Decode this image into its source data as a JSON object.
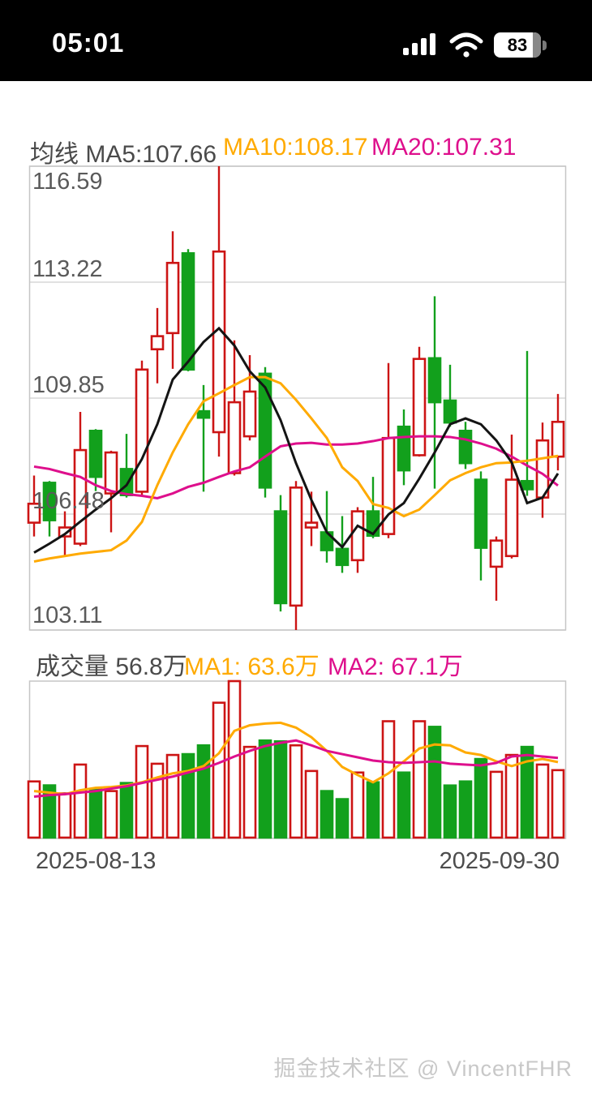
{
  "status_bar": {
    "time": "05:01",
    "battery": "83"
  },
  "price_header": {
    "group": "均线 MA5:107.66",
    "ma10": "MA10:108.17",
    "ma20": "MA20:107.31"
  },
  "volume_header": {
    "vol": "成交量 56.8万",
    "ma1": "MA1: 63.6万",
    "ma2": "MA2: 67.1万"
  },
  "axis": {
    "price_ticks": [
      "116.59",
      "113.22",
      "109.85",
      "106.48",
      "103.11"
    ],
    "date_start": "2025-08-13",
    "date_end": "2025-09-30"
  },
  "watermark": "掘金技术社区 @ VincentFHR",
  "colors": {
    "up": "#cc1414",
    "down": "#12a01c",
    "ma5": "#141414",
    "ma10": "#ffaa00",
    "ma20": "#de0f8c",
    "grid": "#d7d7d7",
    "border": "#c6c6c6"
  },
  "chart_data": {
    "type": "candlestick+volume",
    "date_range": [
      "2025-08-13",
      "2025-09-30"
    ],
    "price_axis": {
      "min": 103.11,
      "max": 116.59,
      "ticks": [
        116.59,
        113.22,
        109.85,
        106.48,
        103.11
      ]
    },
    "volume_axis": {
      "max": 131.8,
      "unit": "万"
    },
    "legend": {
      "price": [
        "MA5",
        "MA10",
        "MA20"
      ],
      "volume": [
        "MA1",
        "MA2"
      ]
    },
    "current": {
      "ma5": 107.66,
      "ma10": 108.17,
      "ma20": 107.31,
      "volume": 56.8,
      "vol_ma1": 63.6,
      "vol_ma2": 67.1
    },
    "candles_ohlc": [
      [
        106.23,
        107.6,
        105.83,
        106.78
      ],
      [
        107.39,
        107.44,
        105.83,
        106.3
      ],
      [
        105.83,
        106.56,
        105.26,
        106.09
      ],
      [
        105.62,
        109.45,
        105.55,
        108.34
      ],
      [
        108.9,
        108.95,
        107.15,
        107.56
      ],
      [
        107.08,
        108.32,
        105.95,
        108.27
      ],
      [
        107.79,
        108.81,
        106.96,
        107.03
      ],
      [
        107.13,
        110.94,
        107.03,
        110.68
      ],
      [
        111.27,
        112.47,
        110.28,
        111.65
      ],
      [
        111.74,
        114.7,
        110.7,
        113.78
      ],
      [
        114.06,
        114.18,
        110.63,
        110.68
      ],
      [
        109.47,
        110.23,
        107.13,
        109.28
      ],
      [
        108.86,
        116.59,
        108.15,
        114.11
      ],
      [
        107.67,
        111.53,
        107.6,
        109.73
      ],
      [
        108.74,
        111.1,
        108.62,
        110.04
      ],
      [
        110.56,
        110.75,
        106.96,
        107.25
      ],
      [
        106.56,
        107.03,
        103.65,
        103.89
      ],
      [
        103.82,
        107.44,
        103.11,
        107.25
      ],
      [
        106.09,
        107.13,
        105.55,
        106.23
      ],
      [
        105.95,
        107.15,
        105.07,
        105.43
      ],
      [
        105.47,
        106.42,
        104.77,
        105.0
      ],
      [
        105.14,
        106.68,
        104.77,
        106.56
      ],
      [
        106.56,
        107.56,
        105.78,
        105.85
      ],
      [
        105.9,
        110.87,
        105.78,
        108.69
      ],
      [
        109.02,
        109.52,
        107.32,
        107.75
      ],
      [
        108.19,
        111.34,
        108.15,
        110.99
      ],
      [
        111.01,
        112.81,
        107.22,
        109.73
      ],
      [
        109.78,
        110.82,
        109.02,
        109.14
      ],
      [
        108.9,
        109.16,
        107.79,
        107.96
      ],
      [
        107.48,
        107.72,
        104.55,
        105.5
      ],
      [
        104.95,
        105.83,
        103.96,
        105.71
      ],
      [
        105.26,
        108.79,
        105.19,
        107.48
      ],
      [
        107.44,
        111.22,
        107.01,
        107.2
      ],
      [
        106.96,
        109.14,
        106.37,
        108.62
      ],
      [
        108.15,
        109.97,
        107.75,
        109.16
      ]
    ],
    "ma5": [
      105.36,
      105.62,
      105.9,
      106.26,
      106.61,
      106.94,
      107.32,
      108.08,
      109.09,
      110.39,
      110.91,
      111.48,
      111.88,
      111.38,
      110.63,
      110.16,
      109.21,
      107.96,
      106.89,
      105.95,
      105.52,
      106.14,
      105.9,
      106.47,
      106.8,
      107.51,
      108.27,
      109.09,
      109.26,
      109.09,
      108.62,
      107.98,
      106.8,
      106.96,
      107.66
    ],
    "ma10": [
      105.1,
      105.19,
      105.26,
      105.33,
      105.38,
      105.43,
      105.71,
      106.25,
      107.32,
      108.27,
      109.09,
      109.76,
      109.99,
      110.23,
      110.46,
      110.46,
      110.28,
      109.8,
      109.26,
      108.69,
      107.84,
      107.44,
      106.77,
      106.66,
      106.42,
      106.61,
      107.03,
      107.46,
      107.67,
      107.84,
      107.96,
      107.98,
      108.03,
      108.1,
      108.17
    ],
    "ma20": [
      107.86,
      107.79,
      107.67,
      107.56,
      107.32,
      107.15,
      107.06,
      107.01,
      106.94,
      107.08,
      107.27,
      107.39,
      107.56,
      107.72,
      107.84,
      108.15,
      108.45,
      108.53,
      108.55,
      108.5,
      108.5,
      108.53,
      108.6,
      108.69,
      108.72,
      108.74,
      108.74,
      108.72,
      108.65,
      108.53,
      108.38,
      108.15,
      107.89,
      107.65,
      107.31
    ],
    "volumes": [
      47.3,
      44.0,
      37.2,
      61.5,
      40.6,
      39.2,
      46.0,
      77.1,
      62.2,
      69.6,
      70.3,
      77.7,
      113.6,
      131.8,
      76.4,
      81.8,
      81.1,
      77.7,
      56.1,
      39.2,
      32.4,
      54.8,
      46.6,
      98.0,
      54.8,
      98.0,
      93.3,
      43.9,
      47.3,
      66.2,
      55.4,
      69.6,
      76.4,
      61.5,
      56.8
    ],
    "vol_ma1": [
      39.2,
      37.9,
      36.5,
      39.9,
      41.9,
      42.6,
      43.9,
      46.6,
      50.7,
      54.1,
      56.1,
      60.2,
      71.0,
      89.9,
      94.6,
      96.0,
      96.7,
      92.6,
      84.5,
      73.0,
      59.5,
      52.7,
      46.6,
      54.1,
      64.2,
      75.0,
      78.4,
      77.7,
      71.7,
      69.6,
      64.2,
      60.2,
      64.2,
      66.2,
      63.6
    ],
    "vol_ma2": [
      34.5,
      35.8,
      36.5,
      37.9,
      39.2,
      41.2,
      43.3,
      46.0,
      48.7,
      51.4,
      54.8,
      58.1,
      62.9,
      68.3,
      73.0,
      77.1,
      79.8,
      81.8,
      77.7,
      73.0,
      70.3,
      67.6,
      64.9,
      63.5,
      62.9,
      63.5,
      64.2,
      62.2,
      61.5,
      60.8,
      62.9,
      68.3,
      69.6,
      68.3,
      67.1
    ]
  }
}
